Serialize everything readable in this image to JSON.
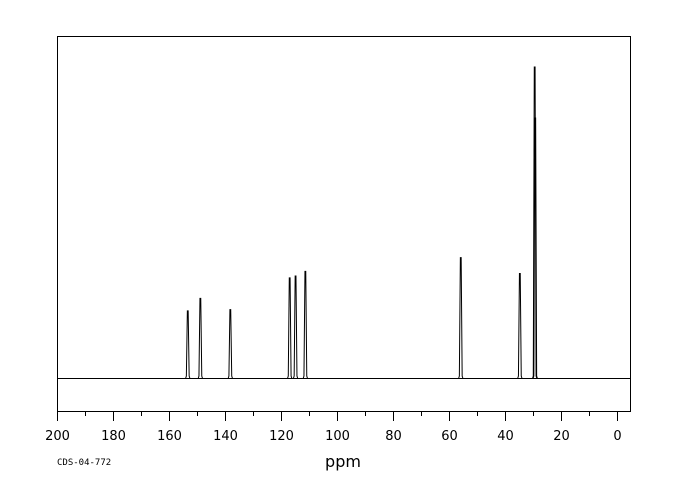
{
  "chart_data": {
    "type": "line",
    "xlabel": "ppm",
    "x_reversed": true,
    "xlim": [
      200,
      -5
    ],
    "x_major_ticks": [
      200,
      180,
      160,
      140,
      120,
      100,
      80,
      60,
      40,
      20,
      0
    ],
    "x_tick_labels": [
      "200",
      "180",
      "160",
      "140",
      "120",
      "100",
      "80",
      "60",
      "40",
      "20",
      "0"
    ],
    "x_minor_ticks": [
      190,
      170,
      150,
      130,
      110,
      90,
      70,
      50,
      30,
      10
    ],
    "ylim": [
      -0.108,
      1.0
    ],
    "grid": false,
    "series": [
      {
        "peaks": [
          {
            "ppm": 153.3,
            "intensity": 0.216
          },
          {
            "ppm": 148.8,
            "intensity": 0.256
          },
          {
            "ppm": 138.1,
            "intensity": 0.22
          },
          {
            "ppm": 116.9,
            "intensity": 0.322
          },
          {
            "ppm": 114.8,
            "intensity": 0.328
          },
          {
            "ppm": 111.3,
            "intensity": 0.343
          },
          {
            "ppm": 55.8,
            "intensity": 0.387
          },
          {
            "ppm": 34.7,
            "intensity": 0.336
          },
          {
            "ppm": 29.4,
            "intensity": 1.0
          },
          {
            "ppm": 29.2,
            "intensity": 0.836
          }
        ]
      }
    ]
  },
  "footer": {
    "code": "CDS-04-772"
  }
}
